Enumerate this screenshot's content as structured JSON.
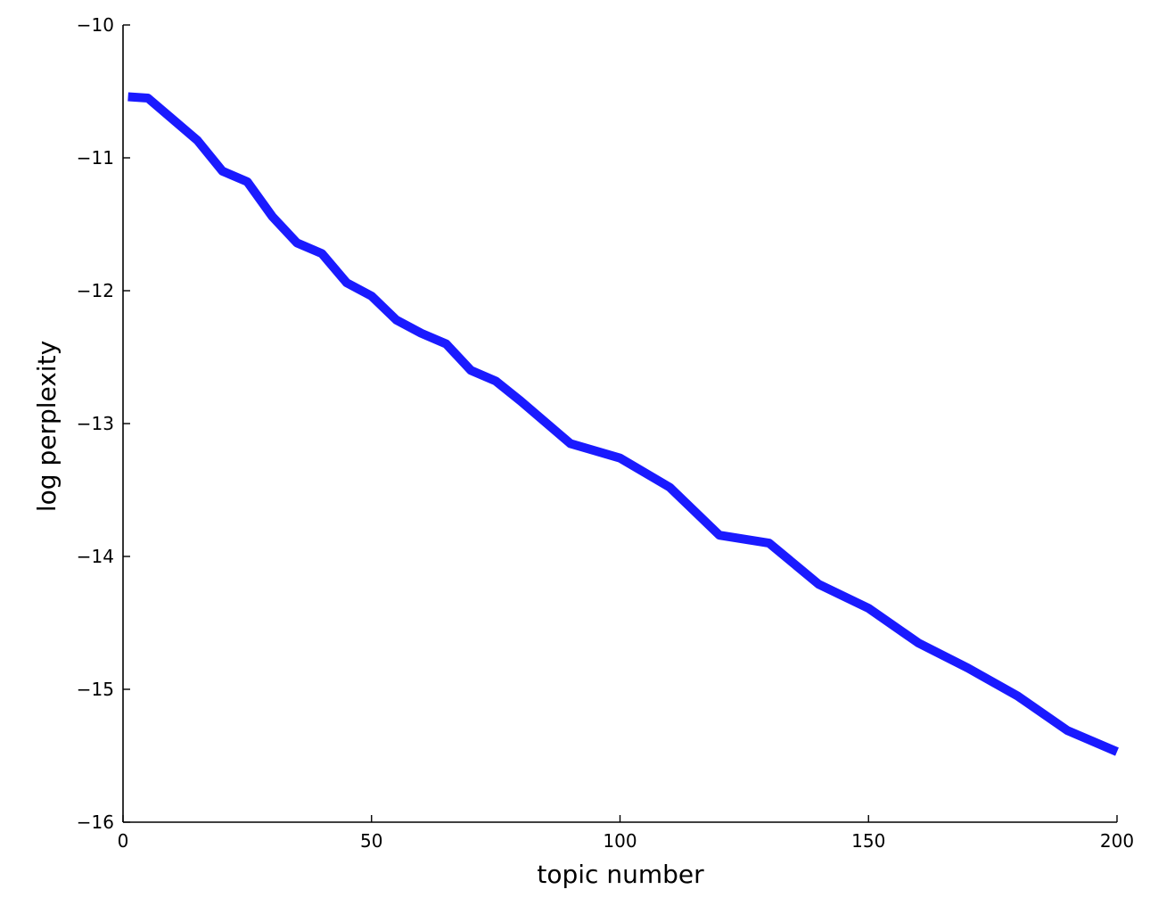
{
  "chart_data": {
    "type": "line",
    "title": "",
    "xlabel": "topic number",
    "ylabel": "log perplexity",
    "xlim": [
      0,
      200
    ],
    "ylim": [
      -16,
      -10
    ],
    "x_ticks": [
      0,
      50,
      100,
      150,
      200
    ],
    "x_tick_labels": [
      "0",
      "50",
      "100",
      "150",
      "200"
    ],
    "y_ticks": [
      -10,
      -11,
      -12,
      -13,
      -14,
      -15,
      -16
    ],
    "y_tick_labels": [
      "−10",
      "−11",
      "−12",
      "−13",
      "−14",
      "−15",
      "−16"
    ],
    "grid": false,
    "legend": "none",
    "series": [
      {
        "color": "#1a1aff",
        "x": [
          1,
          5,
          10,
          15,
          20,
          25,
          30,
          35,
          40,
          45,
          50,
          55,
          60,
          65,
          70,
          75,
          80,
          90,
          100,
          110,
          120,
          130,
          140,
          150,
          160,
          170,
          180,
          190,
          200
        ],
        "y": [
          -10.54,
          -10.55,
          -10.71,
          -10.87,
          -11.1,
          -11.18,
          -11.44,
          -11.64,
          -11.72,
          -11.94,
          -12.04,
          -12.22,
          -12.32,
          -12.4,
          -12.6,
          -12.68,
          -12.83,
          -13.15,
          -13.26,
          -13.48,
          -13.84,
          -13.9,
          -14.21,
          -14.39,
          -14.65,
          -14.84,
          -15.05,
          -15.31,
          -15.47
        ]
      }
    ]
  }
}
